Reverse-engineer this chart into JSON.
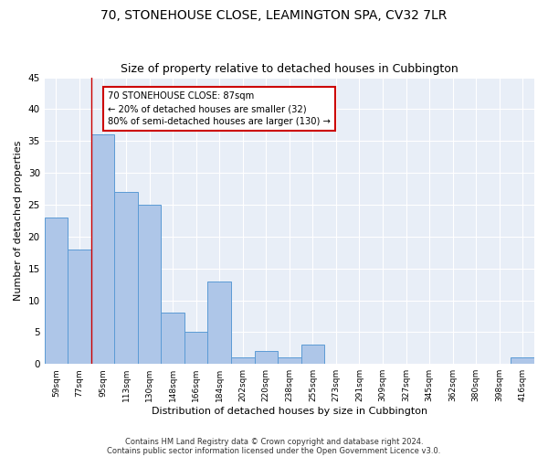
{
  "title": "70, STONEHOUSE CLOSE, LEAMINGTON SPA, CV32 7LR",
  "subtitle": "Size of property relative to detached houses in Cubbington",
  "xlabel": "Distribution of detached houses by size in Cubbington",
  "ylabel": "Number of detached properties",
  "categories": [
    "59sqm",
    "77sqm",
    "95sqm",
    "113sqm",
    "130sqm",
    "148sqm",
    "166sqm",
    "184sqm",
    "202sqm",
    "220sqm",
    "238sqm",
    "255sqm",
    "273sqm",
    "291sqm",
    "309sqm",
    "327sqm",
    "345sqm",
    "362sqm",
    "380sqm",
    "398sqm",
    "416sqm"
  ],
  "values": [
    23,
    18,
    36,
    27,
    25,
    8,
    5,
    13,
    1,
    2,
    1,
    3,
    0,
    0,
    0,
    0,
    0,
    0,
    0,
    0,
    1
  ],
  "bar_color": "#aec6e8",
  "bar_edge_color": "#5b9bd5",
  "vline_x": 1.5,
  "vline_color": "#cc0000",
  "annotation_line1": "70 STONEHOUSE CLOSE: 87sqm",
  "annotation_line2": "← 20% of detached houses are smaller (32)",
  "annotation_line3": "80% of semi-detached houses are larger (130) →",
  "annotation_box_color": "#ffffff",
  "annotation_box_edge_color": "#cc0000",
  "ylim": [
    0,
    45
  ],
  "yticks": [
    0,
    5,
    10,
    15,
    20,
    25,
    30,
    35,
    40,
    45
  ],
  "bg_color": "#e8eef7",
  "grid_color": "#ffffff",
  "title_fontsize": 10,
  "subtitle_fontsize": 9,
  "xlabel_fontsize": 8,
  "ylabel_fontsize": 8,
  "footer_line1": "Contains HM Land Registry data © Crown copyright and database right 2024.",
  "footer_line2": "Contains public sector information licensed under the Open Government Licence v3.0.",
  "fig_bg_color": "#ffffff"
}
